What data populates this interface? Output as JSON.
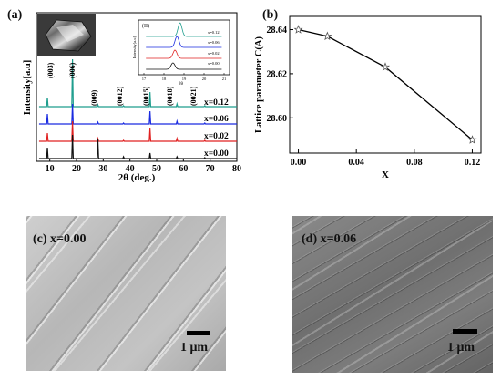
{
  "panel_a": {
    "label": "(a)",
    "ylabel": "Intensity[a.u]",
    "xlabel": "2θ (deg.)",
    "ticks": [
      "10",
      "20",
      "30",
      "40",
      "50",
      "60",
      "70",
      "80"
    ],
    "peak_labels": [
      "(003)",
      "(006)",
      "(009)",
      "(0012)",
      "(0015)",
      "(0018)",
      "(0021)"
    ],
    "series_labels": [
      "x=0.12",
      "x=0.06",
      "x=0.02",
      "x=0.00"
    ],
    "inset": {
      "label": "(II)",
      "ylabel": "Intensity[a.u]",
      "xlabel": "2θ",
      "ticks": [
        "17",
        "18",
        "19",
        "20",
        "21"
      ],
      "legend": [
        "x=0.12",
        "x=0.06",
        "x=0.02",
        "x=0.00"
      ]
    }
  },
  "chart_data": {
    "type": "line",
    "title": "",
    "xlabel": "X",
    "ylabel": "Lattice parameter C(A)",
    "x": [
      0.0,
      0.02,
      0.06,
      0.12
    ],
    "series": [
      {
        "values": [
          28.64,
          28.637,
          28.623,
          28.59
        ]
      }
    ],
    "xlim": [
      -0.006,
      0.126
    ],
    "ylim": [
      28.584,
      28.646
    ],
    "xticks": [
      "0.00",
      "0.04",
      "0.08",
      "0.12"
    ],
    "yticks": [
      "28.60",
      "28.62",
      "28.64"
    ],
    "marker": "star",
    "line_color": "#000000"
  },
  "panel_b": {
    "label": "(b)"
  },
  "panel_c": {
    "label": "(c) x=0.00",
    "scale": "1 μm"
  },
  "panel_d": {
    "label": "(d) x=0.06",
    "scale": "1 μm"
  },
  "colors": {
    "x000": "#111111",
    "x002": "#e02020",
    "x006": "#1a2be0",
    "x012": "#1f9e8e"
  }
}
